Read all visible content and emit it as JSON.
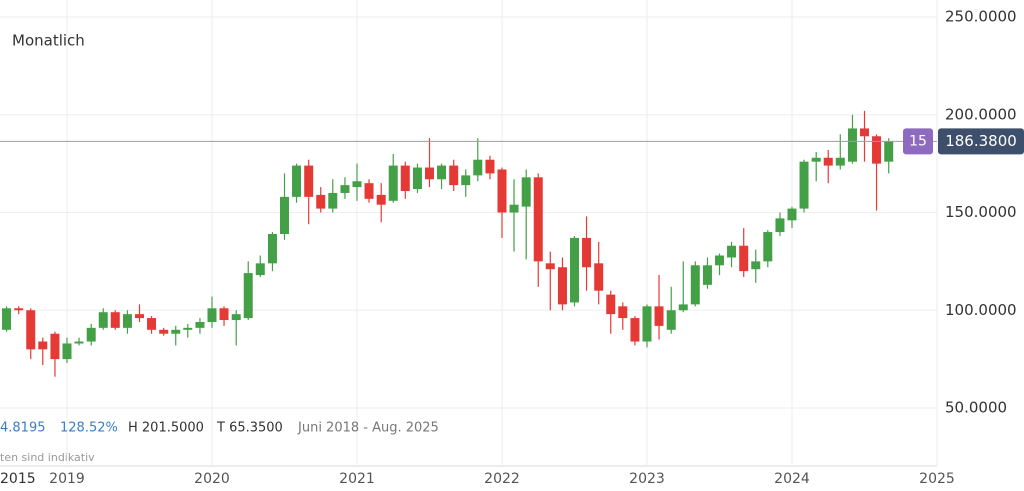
{
  "chart_data": {
    "type": "candlestick",
    "title": "Monatlich",
    "x": [
      2018.583,
      2018.667,
      2018.75,
      2018.833,
      2018.917,
      2019.0,
      2019.083,
      2019.167,
      2019.25,
      2019.333,
      2019.417,
      2019.5,
      2019.583,
      2019.667,
      2019.75,
      2019.833,
      2019.917,
      2020.0,
      2020.083,
      2020.167,
      2020.25,
      2020.333,
      2020.417,
      2020.5,
      2020.583,
      2020.667,
      2020.75,
      2020.833,
      2020.917,
      2021.0,
      2021.083,
      2021.167,
      2021.25,
      2021.333,
      2021.417,
      2021.5,
      2021.583,
      2021.667,
      2021.75,
      2021.833,
      2021.917,
      2022.0,
      2022.083,
      2022.167,
      2022.25,
      2022.333,
      2022.417,
      2022.5,
      2022.583,
      2022.667,
      2022.75,
      2022.833,
      2022.917,
      2023.0,
      2023.083,
      2023.167,
      2023.25,
      2023.333,
      2023.417,
      2023.5,
      2023.583,
      2023.667,
      2023.75,
      2023.833,
      2023.917,
      2024.0,
      2024.083,
      2024.167,
      2024.25,
      2024.333,
      2024.417,
      2024.5,
      2024.583,
      2024.667
    ],
    "open": [
      90,
      101,
      100,
      84,
      88,
      75,
      83,
      84,
      91,
      99,
      91,
      98,
      96,
      90,
      88,
      90,
      91,
      94,
      101,
      95,
      96,
      118,
      124,
      139,
      158,
      174,
      159,
      152,
      160,
      163,
      165,
      159,
      156,
      174,
      162,
      173,
      167,
      174,
      164,
      169,
      177,
      172,
      150,
      153,
      168,
      124,
      122,
      104,
      137,
      124,
      108,
      102,
      96,
      84,
      102,
      90,
      100,
      103,
      113,
      123,
      127,
      133,
      121,
      125,
      140,
      146,
      152,
      176,
      178,
      174,
      176,
      193,
      189,
      176
    ],
    "high": [
      102,
      102,
      101,
      86,
      89,
      86,
      86,
      93,
      101,
      100,
      100,
      103,
      97,
      91,
      92,
      93,
      96,
      107,
      102,
      100,
      125,
      128,
      140,
      170,
      175,
      177,
      163,
      167,
      168,
      175,
      167,
      165,
      180,
      176,
      175,
      188,
      175,
      177,
      172,
      188,
      179,
      173,
      167,
      172,
      170,
      130,
      127,
      138,
      148,
      135,
      110,
      104,
      97,
      103,
      118,
      112,
      125,
      125,
      127,
      129,
      135,
      142,
      131,
      141,
      150,
      153,
      177,
      181,
      182,
      190,
      200,
      202,
      190,
      188
    ],
    "low": [
      89,
      98,
      75,
      72,
      66,
      73,
      82,
      82,
      90,
      90,
      88,
      94,
      88,
      87,
      82,
      86,
      88,
      91,
      92,
      82,
      95,
      117,
      120,
      136,
      155,
      144,
      150,
      150,
      157,
      156,
      155,
      145,
      155,
      157,
      160,
      163,
      162,
      161,
      158,
      166,
      167,
      137,
      130,
      126,
      112,
      100,
      100,
      102,
      110,
      103,
      88,
      90,
      82,
      81,
      85,
      88,
      99,
      102,
      111,
      118,
      122,
      117,
      114,
      122,
      138,
      142,
      150,
      166,
      165,
      172,
      175,
      176,
      151,
      170
    ],
    "close": [
      101,
      100,
      80,
      80,
      75,
      83,
      84,
      91,
      99,
      91,
      98,
      96,
      90,
      88,
      90,
      91,
      94,
      101,
      95,
      98,
      119,
      124,
      139,
      158,
      174,
      158,
      152,
      160,
      164,
      166,
      157,
      154,
      174,
      161,
      173,
      167,
      174,
      164,
      169,
      177,
      170,
      150,
      154,
      168,
      125,
      121,
      103,
      137,
      122,
      110,
      98,
      96,
      84,
      102,
      92,
      100,
      103,
      123,
      123,
      128,
      133,
      120,
      125,
      140,
      147,
      152,
      176,
      178,
      174,
      178,
      193,
      189,
      175,
      186.38
    ],
    "up_color": "#43a047",
    "down_color": "#e53935",
    "xlim": [
      2018.538,
      2025
    ],
    "xticks": [
      2019,
      2020,
      2021,
      2022,
      2023,
      2024,
      2025
    ],
    "x_left_label": "2015",
    "ylim": [
      23.4,
      258.7
    ],
    "yticks": [
      {
        "value": 50,
        "label": "50.0000"
      },
      {
        "value": 100,
        "label": "100.0000"
      },
      {
        "value": 150,
        "label": "150.0000"
      },
      {
        "value": 200,
        "label": "200.0000"
      },
      {
        "value": 250,
        "label": "250.0000"
      }
    ],
    "grid": true,
    "last_price": {
      "value": 186.38,
      "label": "186.3800"
    },
    "badge": "15",
    "info": [
      "4.8195",
      "128.52%",
      "H 201.5000",
      "T 65.3500",
      "Juni 2018 - Aug. 2025"
    ],
    "footnote": "ten sind indikativ"
  }
}
